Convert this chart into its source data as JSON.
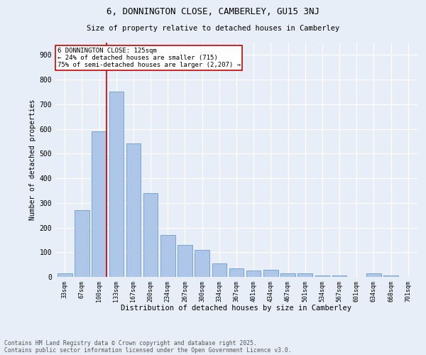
{
  "title": "6, DONNINGTON CLOSE, CAMBERLEY, GU15 3NJ",
  "subtitle": "Size of property relative to detached houses in Camberley",
  "xlabel": "Distribution of detached houses by size in Camberley",
  "ylabel": "Number of detached properties",
  "bar_labels": [
    "33sqm",
    "67sqm",
    "100sqm",
    "133sqm",
    "167sqm",
    "200sqm",
    "234sqm",
    "267sqm",
    "300sqm",
    "334sqm",
    "367sqm",
    "401sqm",
    "434sqm",
    "467sqm",
    "501sqm",
    "534sqm",
    "567sqm",
    "601sqm",
    "634sqm",
    "668sqm",
    "701sqm"
  ],
  "bar_values": [
    15,
    270,
    590,
    750,
    540,
    340,
    170,
    130,
    110,
    55,
    35,
    25,
    30,
    15,
    15,
    5,
    5,
    0,
    15,
    5,
    0
  ],
  "bar_color": "#aec6e8",
  "bar_edge_color": "#5a8fc2",
  "background_color": "#e8eef7",
  "grid_color": "#ffffff",
  "annotation_text": "6 DONNINGTON CLOSE: 125sqm\n← 24% of detached houses are smaller (715)\n75% of semi-detached houses are larger (2,207) →",
  "annotation_box_color": "#ffffff",
  "annotation_box_edge_color": "#cc0000",
  "annotation_text_color": "#000000",
  "vline_color": "#cc0000",
  "ylim": [
    0,
    950
  ],
  "yticks": [
    0,
    100,
    200,
    300,
    400,
    500,
    600,
    700,
    800,
    900
  ],
  "footer_line1": "Contains HM Land Registry data © Crown copyright and database right 2025.",
  "footer_line2": "Contains public sector information licensed under the Open Government Licence v3.0."
}
